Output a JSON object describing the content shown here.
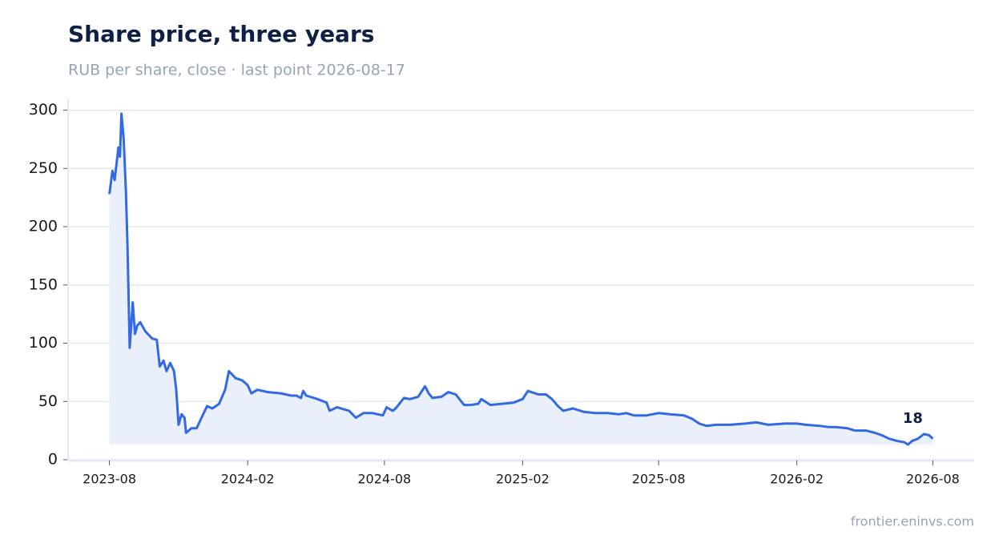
{
  "chart_data": {
    "type": "line",
    "title": "Share price, three years",
    "subtitle": "RUB per share, close · last point 2026-08-17",
    "source": "frontier.eninvs.com",
    "color": "#3369e3",
    "area_color": "#eaf0fb",
    "grid": true,
    "x": [
      "2023-08-17",
      "2023-08-21",
      "2023-08-24",
      "2023-08-29",
      "2023-08-31",
      "2023-09-02",
      "2023-09-05",
      "2023-09-08",
      "2023-09-10",
      "2023-09-13",
      "2023-09-17",
      "2023-09-20",
      "2023-09-23",
      "2023-09-27",
      "2023-10-04",
      "2023-10-13",
      "2023-10-19",
      "2023-10-23",
      "2023-10-28",
      "2023-11-01",
      "2023-11-06",
      "2023-11-11",
      "2023-11-14",
      "2023-11-17",
      "2023-11-21",
      "2023-11-25",
      "2023-11-27",
      "2023-12-04",
      "2023-12-11",
      "2023-12-19",
      "2023-12-25",
      "2024-01-01",
      "2024-01-10",
      "2024-01-18",
      "2024-01-23",
      "2024-02-01",
      "2024-02-10",
      "2024-02-17",
      "2024-02-22",
      "2024-03-01",
      "2024-03-15",
      "2024-04-01",
      "2024-04-15",
      "2024-04-22",
      "2024-04-28",
      "2024-05-01",
      "2024-05-05",
      "2024-05-20",
      "2024-06-01",
      "2024-06-05",
      "2024-06-15",
      "2024-07-01",
      "2024-07-10",
      "2024-07-20",
      "2024-08-01",
      "2024-08-15",
      "2024-08-20",
      "2024-08-28",
      "2024-09-01",
      "2024-09-12",
      "2024-09-20",
      "2024-10-01",
      "2024-10-05",
      "2024-10-10",
      "2024-10-15",
      "2024-10-20",
      "2024-11-01",
      "2024-11-10",
      "2024-11-20",
      "2024-12-01",
      "2024-12-10",
      "2024-12-20",
      "2024-12-24",
      "2025-01-05",
      "2025-01-20",
      "2025-02-05",
      "2025-02-17",
      "2025-02-24",
      "2025-03-10",
      "2025-03-20",
      "2025-03-28",
      "2025-04-05",
      "2025-04-12",
      "2025-04-25",
      "2025-05-10",
      "2025-05-25",
      "2025-06-10",
      "2025-06-25",
      "2025-07-05",
      "2025-07-15",
      "2025-08-01",
      "2025-08-17",
      "2025-09-01",
      "2025-09-20",
      "2025-10-01",
      "2025-10-10",
      "2025-10-20",
      "2025-11-01",
      "2025-11-20",
      "2025-12-10",
      "2025-12-25",
      "2026-01-10",
      "2026-02-01",
      "2026-02-17",
      "2026-03-01",
      "2026-03-20",
      "2026-04-01",
      "2026-04-10",
      "2026-04-25",
      "2026-05-05",
      "2026-05-20",
      "2026-06-01",
      "2026-06-10",
      "2026-06-20",
      "2026-07-01",
      "2026-07-10",
      "2026-07-15",
      "2026-07-20",
      "2026-07-28",
      "2026-08-05",
      "2026-08-12",
      "2026-08-17"
    ],
    "values": [
      228,
      248,
      240,
      268,
      260,
      297,
      275,
      230,
      185,
      96,
      135,
      108,
      115,
      118,
      110,
      104,
      103,
      80,
      85,
      76,
      83,
      76,
      60,
      30,
      39,
      36,
      23,
      27,
      27,
      38,
      46,
      44,
      48,
      60,
      76,
      70,
      68,
      64,
      57,
      60,
      58,
      57,
      55,
      55,
      53,
      59,
      55,
      52,
      49,
      42,
      45,
      42,
      36,
      40,
      40,
      38,
      45,
      42,
      44,
      53,
      52,
      54,
      58,
      63,
      57,
      53,
      54,
      58,
      56,
      47,
      47,
      48,
      52,
      47,
      48,
      49,
      52,
      59,
      56,
      56,
      52,
      46,
      42,
      44,
      41,
      40,
      40,
      39,
      40,
      38,
      38,
      40,
      39,
      38,
      35,
      31,
      29,
      30,
      30,
      31,
      32,
      30,
      31,
      31,
      30,
      29,
      28,
      28,
      27,
      25,
      25,
      23,
      21,
      18,
      16,
      15,
      13,
      16,
      18,
      22,
      21,
      18
    ],
    "annotation": "18",
    "xlim": [
      "2023-06-23",
      "2026-10-11"
    ],
    "xticks": [
      {
        "value": "2023-08-17",
        "label": "2023-08"
      },
      {
        "value": "2024-02-17",
        "label": "2024-02"
      },
      {
        "value": "2024-08-17",
        "label": "2024-08"
      },
      {
        "value": "2025-02-17",
        "label": "2025-02"
      },
      {
        "value": "2025-08-17",
        "label": "2025-08"
      },
      {
        "value": "2026-02-17",
        "label": "2026-02"
      },
      {
        "value": "2026-08-17",
        "label": "2026-08"
      }
    ],
    "ylim": [
      0,
      310
    ],
    "yticks": [
      0,
      50,
      100,
      150,
      200,
      250,
      300
    ]
  }
}
